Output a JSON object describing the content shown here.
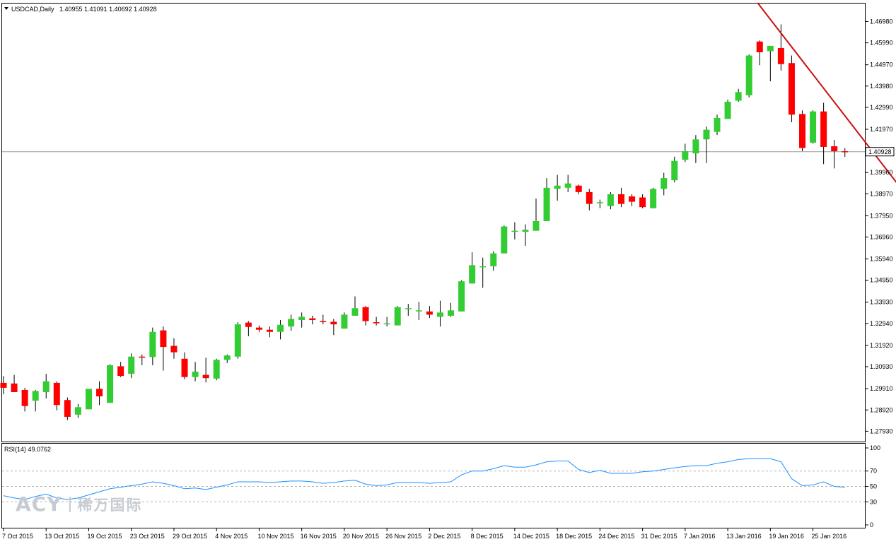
{
  "header": {
    "symbol_label": "USDCAD,Daily",
    "ohlc_text": "1.40955 1.41091 1.40692 1.40928",
    "dropdown_icon": "triangle-down-icon"
  },
  "colors": {
    "bull": "#32cd32",
    "bear": "#ff0000",
    "trendline": "#cc1111",
    "rsi_line": "#1e90ff",
    "price_line": "#9a9a9a",
    "frame": "#000000"
  },
  "chart_data": [
    {
      "type": "candlestick",
      "title": "USDCAD,Daily",
      "ylim": [
        1.2745,
        1.4785
      ],
      "y_ticks": [
        "1.46980",
        "1.45990",
        "1.44970",
        "1.43980",
        "1.42990",
        "1.41970",
        "1.40928",
        "1.39960",
        "1.38970",
        "1.37950",
        "1.36960",
        "1.35940",
        "1.34950",
        "1.33930",
        "1.32940",
        "1.31920",
        "1.30930",
        "1.29910",
        "1.28920",
        "1.27930"
      ],
      "current_price": 1.40928,
      "current_price_label": "1.40928",
      "x_ticks": [
        "7 Oct 2015",
        "13 Oct 2015",
        "19 Oct 2015",
        "23 Oct 2015",
        "29 Oct 2015",
        "4 Nov 2015",
        "10 Nov 2015",
        "16 Nov 2015",
        "20 Nov 2015",
        "26 Nov 2015",
        "2 Dec 2015",
        "8 Dec 2015",
        "14 Dec 2015",
        "18 Dec 2015",
        "24 Dec 2015",
        "31 Dec 2015",
        "7 Jan 2016",
        "13 Jan 2016",
        "19 Jan 2016",
        "25 Jan 2016"
      ],
      "x_tick_bar_index": [
        0,
        4,
        8,
        12,
        16,
        20,
        24,
        28,
        32,
        36,
        40,
        44,
        48,
        52,
        56,
        60,
        64,
        68,
        72,
        76
      ],
      "candles": [
        [
          1.3018,
          1.305,
          1.2965,
          1.2995
        ],
        [
          1.3015,
          1.3055,
          1.299,
          1.2975
        ],
        [
          1.2985,
          1.2995,
          1.2885,
          1.291
        ],
        [
          1.2935,
          1.2985,
          1.2885,
          1.298
        ],
        [
          1.2975,
          1.306,
          1.2945,
          1.3025
        ],
        [
          1.3018,
          1.3025,
          1.289,
          1.2915
        ],
        [
          1.2938,
          1.295,
          1.2845,
          1.286
        ],
        [
          1.287,
          1.292,
          1.2855,
          1.2905
        ],
        [
          1.2895,
          1.2985,
          1.2895,
          1.299
        ],
        [
          1.299,
          1.3025,
          1.2915,
          1.2955
        ],
        [
          1.2925,
          1.3105,
          1.2925,
          1.31
        ],
        [
          1.3095,
          1.3115,
          1.3045,
          1.305
        ],
        [
          1.306,
          1.3155,
          1.304,
          1.314
        ],
        [
          1.314,
          1.315,
          1.31,
          1.3135
        ],
        [
          1.3138,
          1.3275,
          1.31,
          1.3255
        ],
        [
          1.3262,
          1.328,
          1.3075,
          1.3185
        ],
        [
          1.319,
          1.3225,
          1.313,
          1.316
        ],
        [
          1.313,
          1.316,
          1.3035,
          1.3045
        ],
        [
          1.3045,
          1.3115,
          1.3025,
          1.307
        ],
        [
          1.3055,
          1.3135,
          1.302,
          1.304
        ],
        [
          1.3038,
          1.313,
          1.303,
          1.3125
        ],
        [
          1.3125,
          1.315,
          1.311,
          1.3145
        ],
        [
          1.314,
          1.33,
          1.313,
          1.329
        ],
        [
          1.3298,
          1.3305,
          1.3235,
          1.3278
        ],
        [
          1.3275,
          1.3285,
          1.3255,
          1.3265
        ],
        [
          1.3265,
          1.328,
          1.323,
          1.3255
        ],
        [
          1.3255,
          1.331,
          1.322,
          1.3288
        ],
        [
          1.328,
          1.3335,
          1.326,
          1.3315
        ],
        [
          1.331,
          1.3345,
          1.3275,
          1.3325
        ],
        [
          1.3318,
          1.333,
          1.329,
          1.331
        ],
        [
          1.3305,
          1.3335,
          1.329,
          1.33
        ],
        [
          1.3302,
          1.3315,
          1.324,
          1.329
        ],
        [
          1.327,
          1.3345,
          1.327,
          1.3335
        ],
        [
          1.333,
          1.342,
          1.333,
          1.3365
        ],
        [
          1.337,
          1.3375,
          1.3285,
          1.3305
        ],
        [
          1.33,
          1.3325,
          1.3285,
          1.3295
        ],
        [
          1.329,
          1.3325,
          1.328,
          1.3295
        ],
        [
          1.3285,
          1.3375,
          1.3285,
          1.337
        ],
        [
          1.336,
          1.3385,
          1.333,
          1.3365
        ],
        [
          1.3355,
          1.3395,
          1.331,
          1.3355
        ],
        [
          1.335,
          1.3375,
          1.332,
          1.3335
        ],
        [
          1.3325,
          1.34,
          1.328,
          1.3345
        ],
        [
          1.333,
          1.339,
          1.3325,
          1.3355
        ],
        [
          1.335,
          1.3495,
          1.335,
          1.349
        ],
        [
          1.348,
          1.3625,
          1.348,
          1.3565
        ],
        [
          1.356,
          1.36,
          1.346,
          1.356
        ],
        [
          1.356,
          1.363,
          1.354,
          1.362
        ],
        [
          1.362,
          1.375,
          1.362,
          1.3745
        ],
        [
          1.3725,
          1.3765,
          1.3685,
          1.3725
        ],
        [
          1.372,
          1.3755,
          1.3655,
          1.373
        ],
        [
          1.3725,
          1.3875,
          1.3725,
          1.377
        ],
        [
          1.377,
          1.397,
          1.377,
          1.3925
        ],
        [
          1.392,
          1.3985,
          1.3865,
          1.3935
        ],
        [
          1.3925,
          1.3985,
          1.3905,
          1.3945
        ],
        [
          1.3935,
          1.394,
          1.3895,
          1.3905
        ],
        [
          1.3905,
          1.392,
          1.382,
          1.385
        ],
        [
          1.3855,
          1.387,
          1.383,
          1.3858
        ],
        [
          1.384,
          1.3905,
          1.3825,
          1.3895
        ],
        [
          1.3895,
          1.3925,
          1.3835,
          1.385
        ],
        [
          1.3885,
          1.3895,
          1.384,
          1.386
        ],
        [
          1.388,
          1.3895,
          1.383,
          1.3835
        ],
        [
          1.383,
          1.3925,
          1.383,
          1.392
        ],
        [
          1.392,
          1.3995,
          1.389,
          1.397
        ],
        [
          1.396,
          1.407,
          1.395,
          1.405
        ],
        [
          1.4055,
          1.413,
          1.4045,
          1.4095
        ],
        [
          1.4085,
          1.417,
          1.404,
          1.415
        ],
        [
          1.415,
          1.421,
          1.404,
          1.4195
        ],
        [
          1.4185,
          1.4265,
          1.417,
          1.425
        ],
        [
          1.4245,
          1.4335,
          1.4245,
          1.4325
        ],
        [
          1.433,
          1.4385,
          1.4325,
          1.437
        ],
        [
          1.4355,
          1.4545,
          1.4345,
          1.454
        ],
        [
          1.4605,
          1.461,
          1.4495,
          1.4555
        ],
        [
          1.456,
          1.4575,
          1.442,
          1.4585
        ],
        [
          1.4575,
          1.4685,
          1.447,
          1.45
        ],
        [
          1.4505,
          1.454,
          1.423,
          1.4265
        ],
        [
          1.4268,
          1.4285,
          1.4095,
          1.411
        ],
        [
          1.4135,
          1.4285,
          1.413,
          1.428
        ],
        [
          1.428,
          1.432,
          1.4035,
          1.4115
        ],
        [
          1.4118,
          1.4148,
          1.4015,
          1.4095
        ],
        [
          1.4095,
          1.4109,
          1.4069,
          1.4093
        ]
      ],
      "trendline": {
        "start": [
          70.8,
          1.4785
        ],
        "end": [
          84.4,
          1.3914
        ]
      }
    },
    {
      "type": "line",
      "title": "RSI(14) 49.0762",
      "ylim": [
        0,
        100
      ],
      "y_ticks": [
        "100",
        "70",
        "50",
        "30",
        "0"
      ],
      "levels": [
        70,
        50,
        30
      ],
      "series": [
        {
          "name": "RSI(14)",
          "values": [
            38,
            35,
            33,
            37,
            40,
            35,
            33,
            35,
            39,
            43,
            47,
            49,
            51,
            53,
            56,
            54,
            51,
            47,
            48,
            46,
            49,
            52,
            56,
            56,
            56,
            55,
            56,
            57,
            57,
            56,
            54,
            55,
            57,
            58,
            53,
            51,
            52,
            55,
            55,
            55,
            54,
            55,
            56,
            65,
            70,
            70,
            73,
            77,
            75,
            75,
            78,
            82,
            83,
            83,
            72,
            68,
            71,
            67,
            67,
            67,
            69,
            70,
            72,
            74,
            76,
            77,
            77,
            80,
            82,
            85,
            86,
            86,
            86,
            82,
            60,
            51,
            52,
            56,
            50,
            49
          ]
        }
      ]
    }
  ],
  "watermark": {
    "brand": "ACY",
    "chinese": "稀万国际"
  }
}
